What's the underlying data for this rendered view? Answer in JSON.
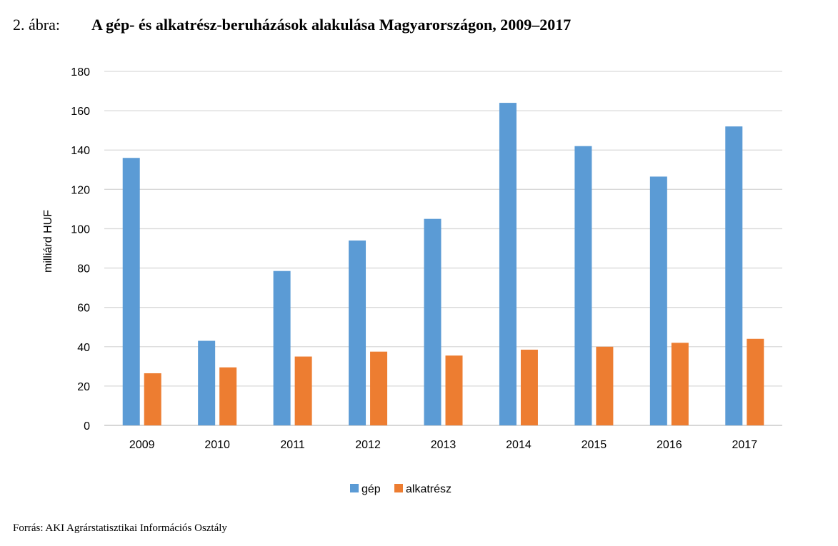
{
  "figure": {
    "label": "2. ábra:",
    "title": "A gép- és alkatrész-beruházások alakulása Magyarországon, 2009–2017",
    "source": "Forrás: AKI Agrárstatisztikai Információs Osztály"
  },
  "chart_data": {
    "type": "bar",
    "title": "",
    "xlabel": "",
    "ylabel": "milliárd HUF",
    "ylim": [
      0,
      180
    ],
    "yticks": [
      0,
      20,
      40,
      60,
      80,
      100,
      120,
      140,
      160,
      180
    ],
    "grid": true,
    "legend": "bottom",
    "categories": [
      "2009",
      "2010",
      "2011",
      "2012",
      "2013",
      "2014",
      "2015",
      "2016",
      "2017"
    ],
    "series": [
      {
        "name": "gép",
        "color": "#5b9bd5",
        "values": [
          136,
          43,
          78.5,
          94,
          105,
          164,
          142,
          126.5,
          152
        ]
      },
      {
        "name": "alkatrész",
        "color": "#ed7d31",
        "values": [
          26.5,
          29.5,
          35,
          37.5,
          35.5,
          38.5,
          40,
          42,
          44
        ]
      }
    ]
  }
}
